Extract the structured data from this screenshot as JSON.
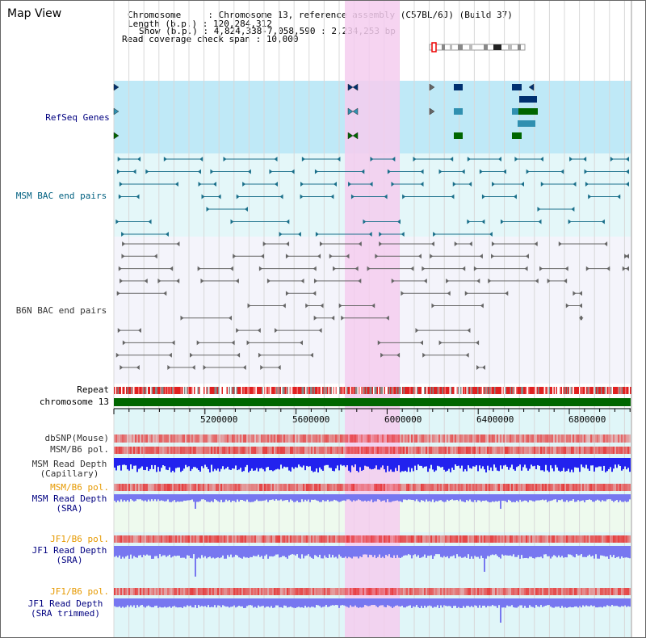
{
  "view": {
    "title": "Map View",
    "info": {
      "chromosome_key": "Chromosome     : ",
      "chromosome_val": "Chromosome 13, reference assembly (C57BL/6J) (Build 37)",
      "length_key": "Length (b.p.) : ",
      "length_val": "120,284,312",
      "show_key": "Show (b.p.) : ",
      "show_val": "4,824,338-7,058,590 : 2,234,253 bp",
      "span_key": "Read coverage check span : ",
      "span_val": "10,000"
    }
  },
  "tracks": {
    "refseq": "RefSeq Genes",
    "msm_bac": "MSM BAC end pairs",
    "b6n_bac": "B6N BAC end pairs",
    "repeat": "Repeat",
    "chrom": "chromosome 13",
    "dbsnp": "dbSNP(Mouse)",
    "msm_b6_pol": "MSM/B6 pol.",
    "msm_depth_cap": "MSM Read Depth\n(Capillary)",
    "msm_b6_pol2": "MSM/B6 pol.",
    "msm_depth_sra": "MSM Read Depth\n(SRA)",
    "jf1_b6_pol": "JF1/B6 pol.",
    "jf1_depth_sra": "JF1 Read Depth\n(SRA)",
    "jf1_b6_pol2": "JF1/B6 pol.",
    "jf1_depth_trim": "JF1 Read Depth\n(SRA trimmed)"
  },
  "axis": {
    "ticks": [
      "5200000",
      "5600000",
      "6000000",
      "6400000",
      "6800000"
    ]
  },
  "colors": {
    "highlight": "#f5ccee",
    "refseq_bg": "#bfe9f7",
    "msm_bg": "#e4f7f9",
    "b6n_bg": "#f4f4fb",
    "label_blue": "#000080",
    "label_teal": "#006080",
    "label_orange": "#e69900",
    "label_gray": "#333333",
    "chrom_green": "#006600",
    "depth_blue": "#2222ee",
    "depth_light": "#7777f0"
  }
}
